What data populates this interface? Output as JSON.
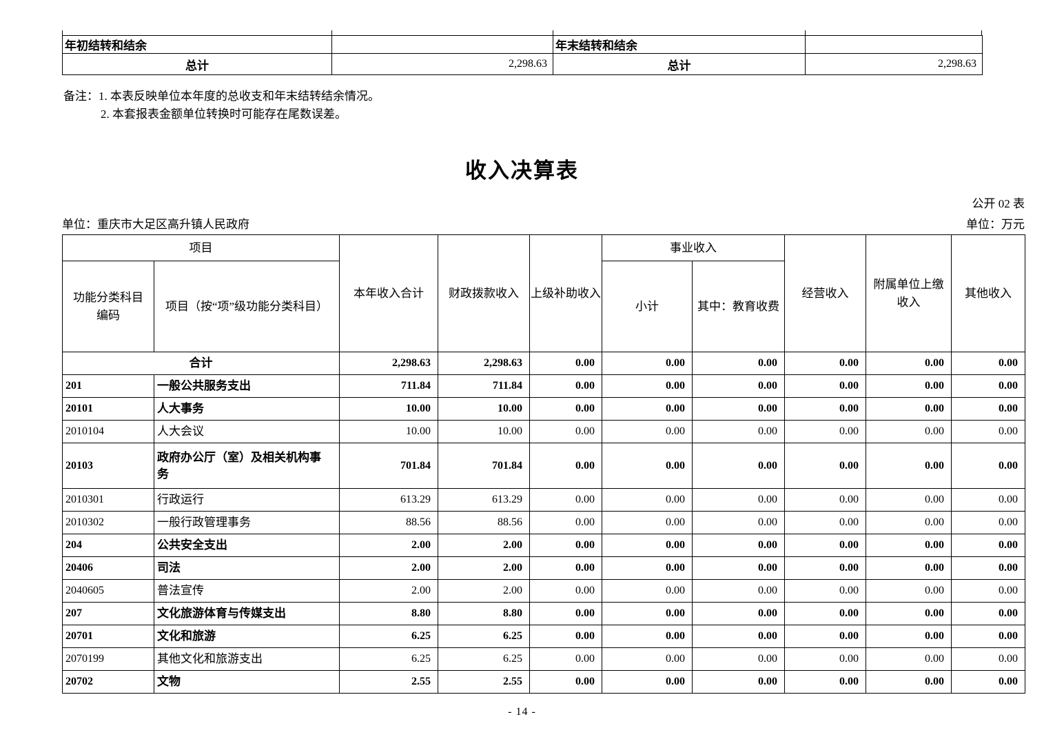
{
  "carryover_table": {
    "left": {
      "header": "年初结转和结余",
      "total_label": "总计",
      "total_value": "2,298.63"
    },
    "right": {
      "header": "年末结转和结余",
      "total_label": "总计",
      "total_value": "2,298.63"
    }
  },
  "notes": {
    "line1": "备注：1. 本表反映单位本年度的总收支和年末结转结余情况。",
    "line2": "2. 本套报表金额单位转换时可能存在尾数误差。"
  },
  "title": "收入决算表",
  "table_code": "公开 02 表",
  "unit_name": "单位：重庆市大足区高升镇人民政府",
  "unit_currency": "单位：万元",
  "income_table": {
    "headers": {
      "project_group": "项目",
      "code": "功能分类科目\n编码",
      "project_item": "项目（按“项”级功能分类科目）",
      "total_income": "本年收入合计",
      "fiscal_allocation": "财政拨款收入",
      "superior_subsidy": "上级补助收入",
      "business_income_group": "事业收入",
      "subtotal": "小计",
      "education_fees": "其中：教育收费",
      "operating_income": "经营收入",
      "affiliated_remit": "附属单位上缴\n收入",
      "other_income": "其他收入"
    },
    "rows": [
      {
        "code": "",
        "name": "合计",
        "merged": true,
        "bold": true,
        "tall": false,
        "values": [
          "2,298.63",
          "2,298.63",
          "0.00",
          "0.00",
          "0.00",
          "0.00",
          "0.00",
          "0.00"
        ]
      },
      {
        "code": "201",
        "name": "一般公共服务支出",
        "merged": false,
        "bold": true,
        "tall": false,
        "values": [
          "711.84",
          "711.84",
          "0.00",
          "0.00",
          "0.00",
          "0.00",
          "0.00",
          "0.00"
        ]
      },
      {
        "code": "20101",
        "name": "人大事务",
        "merged": false,
        "bold": true,
        "tall": false,
        "values": [
          "10.00",
          "10.00",
          "0.00",
          "0.00",
          "0.00",
          "0.00",
          "0.00",
          "0.00"
        ]
      },
      {
        "code": "2010104",
        "name": "人大会议",
        "merged": false,
        "bold": false,
        "tall": false,
        "values": [
          "10.00",
          "10.00",
          "0.00",
          "0.00",
          "0.00",
          "0.00",
          "0.00",
          "0.00"
        ]
      },
      {
        "code": "20103",
        "name": "政府办公厅（室）及相关机构事\n务",
        "merged": false,
        "bold": true,
        "tall": true,
        "values": [
          "701.84",
          "701.84",
          "0.00",
          "0.00",
          "0.00",
          "0.00",
          "0.00",
          "0.00"
        ]
      },
      {
        "code": "2010301",
        "name": "行政运行",
        "merged": false,
        "bold": false,
        "tall": false,
        "values": [
          "613.29",
          "613.29",
          "0.00",
          "0.00",
          "0.00",
          "0.00",
          "0.00",
          "0.00"
        ]
      },
      {
        "code": "2010302",
        "name": "一般行政管理事务",
        "merged": false,
        "bold": false,
        "tall": false,
        "values": [
          "88.56",
          "88.56",
          "0.00",
          "0.00",
          "0.00",
          "0.00",
          "0.00",
          "0.00"
        ]
      },
      {
        "code": "204",
        "name": "公共安全支出",
        "merged": false,
        "bold": true,
        "tall": false,
        "values": [
          "2.00",
          "2.00",
          "0.00",
          "0.00",
          "0.00",
          "0.00",
          "0.00",
          "0.00"
        ]
      },
      {
        "code": "20406",
        "name": "司法",
        "merged": false,
        "bold": true,
        "tall": false,
        "values": [
          "2.00",
          "2.00",
          "0.00",
          "0.00",
          "0.00",
          "0.00",
          "0.00",
          "0.00"
        ]
      },
      {
        "code": "2040605",
        "name": "普法宣传",
        "merged": false,
        "bold": false,
        "tall": false,
        "values": [
          "2.00",
          "2.00",
          "0.00",
          "0.00",
          "0.00",
          "0.00",
          "0.00",
          "0.00"
        ]
      },
      {
        "code": "207",
        "name": "文化旅游体育与传媒支出",
        "merged": false,
        "bold": true,
        "tall": false,
        "values": [
          "8.80",
          "8.80",
          "0.00",
          "0.00",
          "0.00",
          "0.00",
          "0.00",
          "0.00"
        ]
      },
      {
        "code": "20701",
        "name": "文化和旅游",
        "merged": false,
        "bold": true,
        "tall": false,
        "values": [
          "6.25",
          "6.25",
          "0.00",
          "0.00",
          "0.00",
          "0.00",
          "0.00",
          "0.00"
        ]
      },
      {
        "code": "2070199",
        "name": "其他文化和旅游支出",
        "merged": false,
        "bold": false,
        "tall": false,
        "values": [
          "6.25",
          "6.25",
          "0.00",
          "0.00",
          "0.00",
          "0.00",
          "0.00",
          "0.00"
        ]
      },
      {
        "code": "20702",
        "name": "文物",
        "merged": false,
        "bold": true,
        "tall": false,
        "values": [
          "2.55",
          "2.55",
          "0.00",
          "0.00",
          "0.00",
          "0.00",
          "0.00",
          "0.00"
        ]
      }
    ]
  },
  "page": {
    "footer": "- 14 -"
  }
}
